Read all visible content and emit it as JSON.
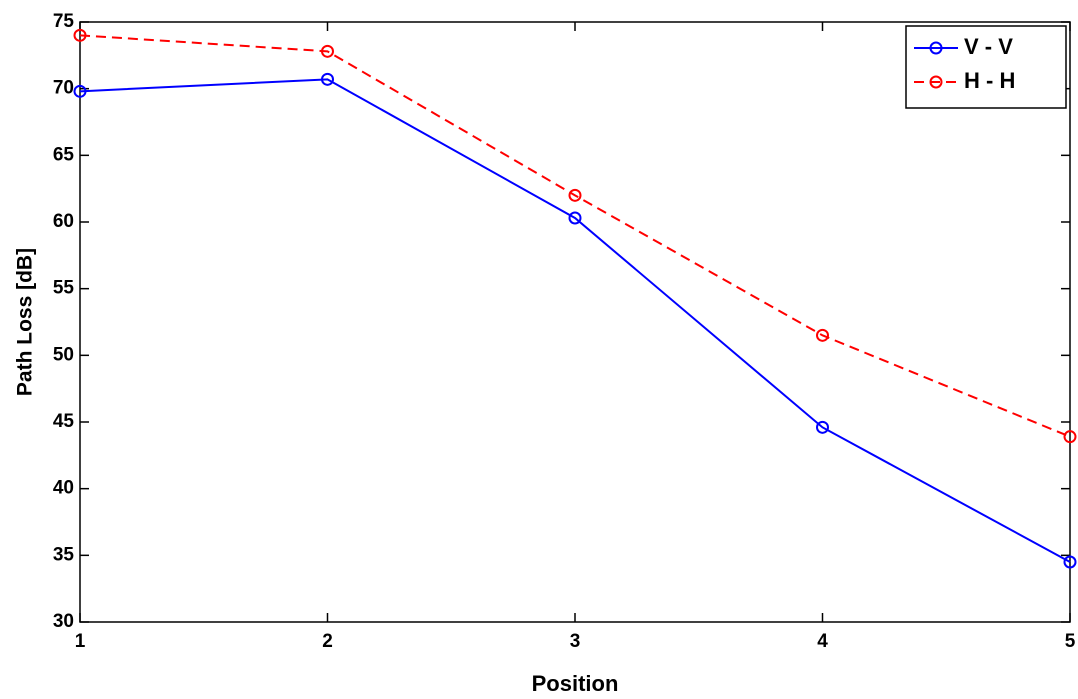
{
  "chart_data": {
    "type": "line",
    "xlabel": "Position",
    "ylabel": "Path Loss [dB]",
    "x": [
      1,
      2,
      3,
      4,
      5
    ],
    "series": [
      {
        "name": "V - V",
        "color": "#0000ff",
        "linestyle": "solid",
        "values": [
          69.8,
          70.7,
          60.3,
          44.6,
          34.5
        ]
      },
      {
        "name": "H - H",
        "color": "#ff0000",
        "linestyle": "dashed",
        "values": [
          74.0,
          72.8,
          62.0,
          51.5,
          43.9
        ]
      }
    ],
    "xlim": [
      1,
      5
    ],
    "xticks": [
      1,
      2,
      3,
      4,
      5
    ],
    "ylim": [
      30,
      75
    ],
    "yticks": [
      30,
      35,
      40,
      45,
      50,
      55,
      60,
      65,
      70,
      75
    ],
    "grid": false,
    "legend": "top-right"
  }
}
